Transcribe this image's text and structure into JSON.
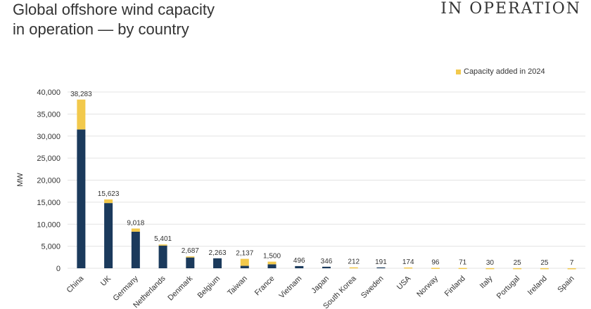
{
  "header": {
    "title_line1": "Global offshore wind capacity",
    "title_line2": "in operation — by country",
    "corner_label": "IN OPERATION"
  },
  "colors": {
    "base": "#1b3a5c",
    "added": "#f2c94c",
    "grid": "#e3e3e3"
  },
  "chart_data": {
    "type": "bar",
    "stacked": true,
    "ylabel": "MW",
    "ylim": [
      0,
      40000
    ],
    "yticks": [
      0,
      5000,
      10000,
      15000,
      20000,
      25000,
      30000,
      35000,
      40000
    ],
    "ytick_labels": [
      "0",
      "5,000",
      "10,000",
      "15,000",
      "20,000",
      "25,000",
      "30,000",
      "35,000",
      "40,000"
    ],
    "legend": {
      "label": "Capacity added in 2024",
      "position": "top-right"
    },
    "categories": [
      "China",
      "UK",
      "Germany",
      "Netherlands",
      "Denmark",
      "Belgium",
      "Taiwan",
      "France",
      "Vietnam",
      "Japan",
      "South Korea",
      "Sweden",
      "USA",
      "Norway",
      "Finland",
      "Italy",
      "Portugal",
      "Ireland",
      "Spain"
    ],
    "totals": [
      38283,
      15623,
      9018,
      5401,
      2687,
      2263,
      2137,
      1500,
      496,
      346,
      212,
      191,
      174,
      96,
      71,
      30,
      25,
      25,
      7
    ],
    "total_labels": [
      "38,283",
      "15,623",
      "9,018",
      "5,401",
      "2,687",
      "2,263",
      "2,137",
      "1,500",
      "496",
      "346",
      "212",
      "191",
      "174",
      "96",
      "71",
      "30",
      "25",
      "25",
      "7"
    ],
    "series": [
      {
        "values": [
          31500,
          14800,
          8300,
          5150,
          2450,
          2263,
          550,
          900,
          496,
          346,
          0,
          191,
          0,
          0,
          0,
          0,
          0,
          0,
          0
        ]
      },
      {
        "name": "Capacity added in 2024",
        "values": [
          6783,
          823,
          718,
          251,
          237,
          0,
          1587,
          600,
          0,
          0,
          212,
          0,
          174,
          96,
          71,
          30,
          25,
          25,
          7
        ]
      }
    ],
    "grid": true
  }
}
